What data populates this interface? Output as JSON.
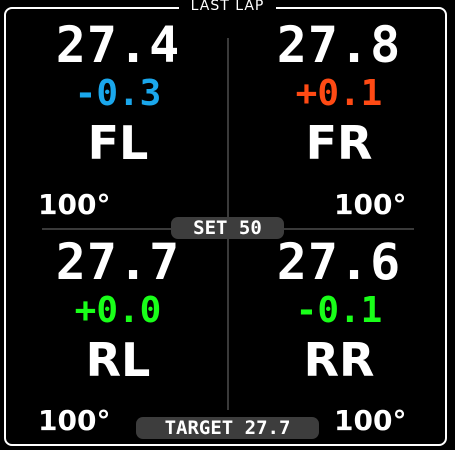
{
  "header": {
    "title": "LAST LAP"
  },
  "tires": [
    {
      "corner": "FL",
      "pressure": "27.4",
      "delta": "-0.3",
      "delta_color": "#1aa7ec",
      "temp": "100°"
    },
    {
      "corner": "FR",
      "pressure": "27.8",
      "delta": "+0.1",
      "delta_color": "#ff4a14",
      "temp": "100°"
    },
    {
      "corner": "RL",
      "pressure": "27.7",
      "delta": "+0.0",
      "delta_color": "#19ff19",
      "temp": "100°"
    },
    {
      "corner": "RR",
      "pressure": "27.6",
      "delta": "-0.1",
      "delta_color": "#19ff19",
      "temp": "100°"
    }
  ],
  "set_label": "SET 50",
  "target_label": "TARGET 27.7",
  "colors": {
    "background": "#000000",
    "text": "#ffffff",
    "divider": "#3a3a3a",
    "pill": "#3d3d3d"
  }
}
